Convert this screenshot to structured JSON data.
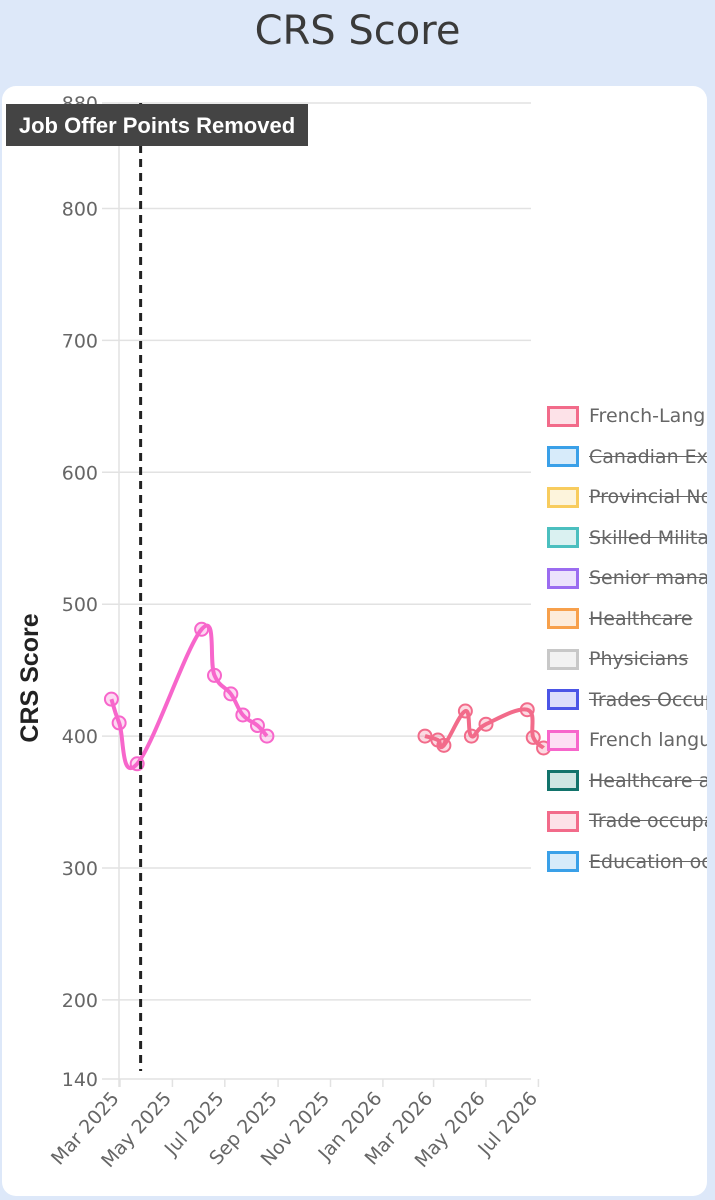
{
  "page": {
    "title": "CRS Score"
  },
  "chart_data": {
    "type": "line",
    "ylabel": "CRS Score",
    "ylim": [
      140,
      880
    ],
    "yticks": [
      140,
      200,
      300,
      400,
      500,
      600,
      700,
      800,
      880
    ],
    "xticks": [
      "Mar 2025",
      "May 2025",
      "Jul 2025",
      "Sep 2025",
      "Nov 2025",
      "Jan 2026",
      "Mar 2026",
      "May 2026",
      "Jul 2026"
    ],
    "xtick_dates": [
      "2025-03-01",
      "2025-05-01",
      "2025-07-01",
      "2025-09-01",
      "2025-11-01",
      "2026-01-01",
      "2026-03-01",
      "2026-05-01",
      "2026-07-01"
    ],
    "annotation": {
      "label": "Job Offer Points Removed",
      "date": "2025-03-25"
    },
    "series": [
      {
        "name": "French-Language",
        "color": "#f26b8a",
        "values": [
          {
            "date": "2026-02-19",
            "value": 400
          },
          {
            "date": "2026-03-06",
            "value": 397
          },
          {
            "date": "2026-03-13",
            "value": 393
          },
          {
            "date": "2026-04-07",
            "value": 419
          },
          {
            "date": "2026-04-14",
            "value": 400
          },
          {
            "date": "2026-05-01",
            "value": 409
          },
          {
            "date": "2026-06-18",
            "value": 420
          },
          {
            "date": "2026-06-25",
            "value": 399
          },
          {
            "date": "2026-07-07",
            "value": 391
          }
        ]
      },
      {
        "name": "French language",
        "color": "#f766cb",
        "values": [
          {
            "date": "2025-02-19",
            "value": 428
          },
          {
            "date": "2025-02-28",
            "value": 410
          },
          {
            "date": "2025-03-21",
            "value": 379
          },
          {
            "date": "2025-06-04",
            "value": 481
          },
          {
            "date": "2025-06-19",
            "value": 446
          },
          {
            "date": "2025-07-08",
            "value": 432
          },
          {
            "date": "2025-07-22",
            "value": 416
          },
          {
            "date": "2025-08-08",
            "value": 408
          },
          {
            "date": "2025-08-19",
            "value": 400
          }
        ]
      }
    ],
    "legend": [
      {
        "label": "French-Language",
        "color": "#f26b8a",
        "fill": "#fde2e8",
        "hidden": false
      },
      {
        "label": "Canadian Experience",
        "color": "#3aa0e8",
        "fill": "#d7ebfa",
        "hidden": true
      },
      {
        "label": "Provincial Nominee",
        "color": "#f8cc5e",
        "fill": "#fdf4dc",
        "hidden": true
      },
      {
        "label": "Skilled Military",
        "color": "#4bbfbf",
        "fill": "#daf1f1",
        "hidden": true
      },
      {
        "label": "Senior managers",
        "color": "#9b6cf0",
        "fill": "#ece2fc",
        "hidden": true
      },
      {
        "label": "Healthcare",
        "color": "#f7a04b",
        "fill": "#fdecda",
        "hidden": true
      },
      {
        "label": "Physicians",
        "color": "#c8c8c8",
        "fill": "#f2f2f2",
        "hidden": true
      },
      {
        "label": "Trades Occupations",
        "color": "#4b55e6",
        "fill": "#dcdefb",
        "hidden": true
      },
      {
        "label": "French language",
        "color": "#f766cb",
        "fill": "#fde0f4",
        "hidden": false
      },
      {
        "label": "Healthcare and social services",
        "color": "#12736b",
        "fill": "#cfe6e3",
        "hidden": true
      },
      {
        "label": "Trade occupations",
        "color": "#f26b8a",
        "fill": "#fde2e8",
        "hidden": true
      },
      {
        "label": "Education occupations",
        "color": "#3aa0e8",
        "fill": "#d7ebfa",
        "hidden": true
      }
    ]
  }
}
